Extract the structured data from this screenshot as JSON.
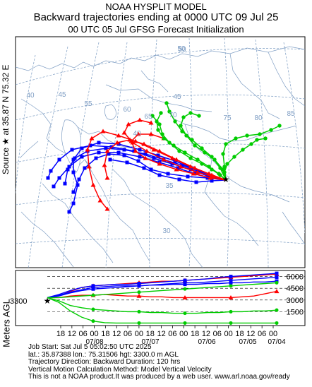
{
  "header": {
    "line1": "NOAA HYSPLIT MODEL",
    "line2": "Backward trajectories ending at 0000 UTC 09 Jul 25",
    "line3": "00 UTC 05 Jul    GFSG  Forecast Initialization"
  },
  "source_label": "Source ★ at  35.87 N  75.32 E",
  "map": {
    "lon_labels": [
      "40",
      "45",
      "50",
      "55",
      "60",
      "65",
      "70",
      "75",
      "80",
      "85"
    ],
    "lat_labels": [
      "50",
      "45",
      "40",
      "35",
      "30"
    ],
    "source_lat": 35.87,
    "source_lon": 75.32,
    "series_colors": [
      "#ff0000",
      "#0000ff",
      "#00cc00"
    ]
  },
  "profile": {
    "ylabel": "Meters AGL",
    "start_height_label": "3300",
    "y_ticks": [
      "6000",
      "4500",
      "3000",
      "1500"
    ],
    "x_tick_labels": [
      "18",
      "12",
      "06",
      "00",
      "18",
      "12",
      "06",
      "00",
      "18",
      "12",
      "06",
      "00",
      "18",
      "12",
      "06",
      "00",
      "18",
      "12",
      "06",
      "00"
    ],
    "date_labels": [
      "07/08",
      "07/07",
      "07/06",
      "07/05",
      "07/04"
    ]
  },
  "info": {
    "line1": "Job Start: Sat Jul  5 05:02:50 UTC 2025",
    "line2": "lat.: 35.87388   lon.: 75.31506   hgt: 3300.0 m AGL",
    "line3": "Trajectory Direction: Backward        Duration: 120 hrs",
    "line4": "Vertical Motion Calculation Method: Model Vertical Velocity",
    "line5": "This is not a NOAA product.It was produced by a web user. www.arl.noaa.gov/ready"
  },
  "chart_data": {
    "type": "line",
    "title": "Backward trajectories ending at 0000 UTC 09 Jul 25",
    "start_height_m": 3300,
    "duration_hours": 120,
    "ylim": [
      0,
      6500
    ],
    "yticks": [
      1500,
      3000,
      4500,
      6000
    ],
    "x": [
      "07/09 00",
      "07/08 18",
      "07/08 12",
      "07/08 06",
      "07/08 00",
      "07/07 18",
      "07/07 12",
      "07/07 06",
      "07/07 00",
      "07/06 18",
      "07/06 12",
      "07/06 06",
      "07/06 00",
      "07/05 18",
      "07/05 12",
      "07/05 06",
      "07/05 00",
      "07/04 18",
      "07/04 12",
      "07/04 06",
      "07/04 00"
    ],
    "series": [
      {
        "color": "#ff0000",
        "values": [
          3300,
          3500,
          4100,
          4600,
          4800,
          4900,
          5000,
          5100,
          5200,
          5300,
          5400,
          5400,
          5500,
          5600,
          5700,
          5800,
          5900,
          6000,
          6100,
          6200,
          6300
        ]
      },
      {
        "color": "#ff0000",
        "values": [
          3300,
          3300,
          3500,
          3600,
          3600,
          3700,
          3600,
          3500,
          3500,
          3400,
          3400,
          3300,
          3300,
          3300,
          3300,
          3300,
          3300,
          3400,
          3500,
          3800,
          4100
        ]
      },
      {
        "color": "#0000ff",
        "values": [
          3300,
          3700,
          4200,
          4600,
          4800,
          4900,
          5000,
          5000,
          5100,
          5200,
          5300,
          5400,
          5500,
          5600,
          5700,
          5900,
          6000,
          6100,
          6200,
          6300,
          6400
        ]
      },
      {
        "color": "#0000ff",
        "values": [
          3300,
          3500,
          3900,
          4200,
          4400,
          4500,
          4600,
          4700,
          4800,
          4900,
          5000,
          5100,
          5200,
          5200,
          5300,
          5400,
          5500,
          5600,
          5700,
          5800,
          5900
        ]
      },
      {
        "color": "#0000ff",
        "values": [
          3300,
          3600,
          4000,
          4300,
          4600,
          4700,
          4800,
          4800,
          4800,
          4900,
          4900,
          5000,
          5000,
          5000,
          5100,
          5100,
          5200,
          5200,
          5300,
          5300,
          5400
        ]
      },
      {
        "color": "#00cc00",
        "values": [
          3300,
          3300,
          3400,
          3500,
          3600,
          3700,
          3800,
          3900,
          4000,
          4100,
          4200,
          4300,
          4400,
          4500,
          4600,
          4700,
          4800,
          4900,
          5000,
          5100,
          5200
        ]
      },
      {
        "color": "#00cc00",
        "values": [
          3300,
          2900,
          2300,
          2000,
          1800,
          1700,
          1600,
          1500,
          1500,
          1400,
          1400,
          1300,
          1300,
          1300,
          1400,
          1400,
          1500,
          1500,
          1600,
          1600,
          1700
        ]
      },
      {
        "color": "#00cc00",
        "values": [
          3300,
          2700,
          1600,
          800,
          300,
          100,
          50,
          50,
          50,
          50,
          50,
          50,
          50,
          50,
          50,
          50,
          50,
          50,
          50,
          50,
          50
        ]
      }
    ]
  }
}
